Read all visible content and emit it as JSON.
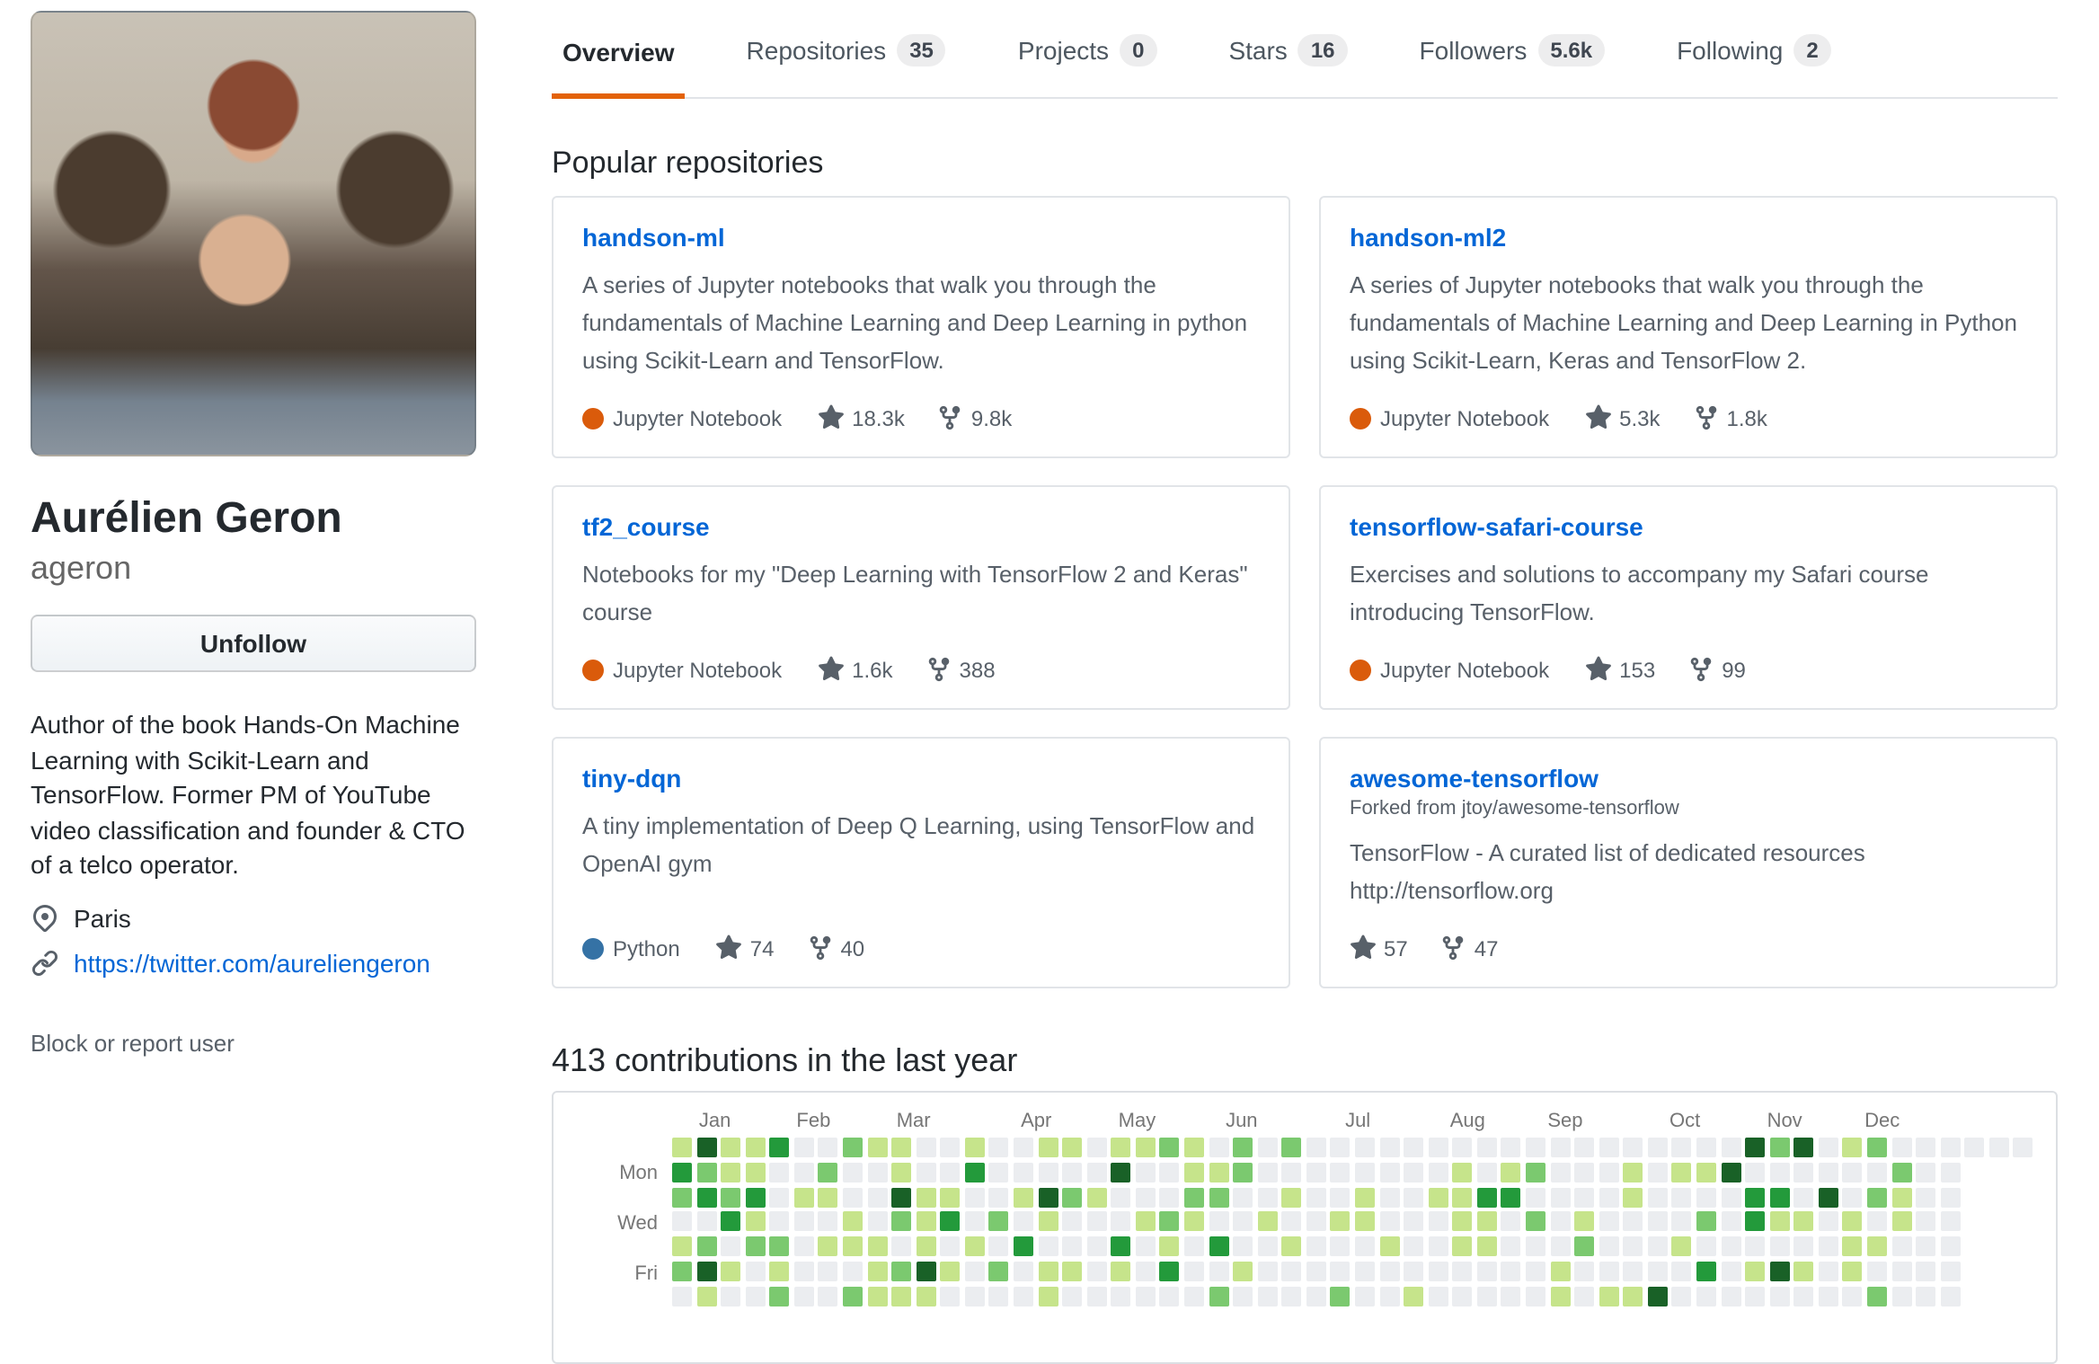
{
  "profile": {
    "name": "Aurélien Geron",
    "username": "ageron",
    "follow_button": "Unfollow",
    "bio": "Author of the book Hands-On Machine Learning with Scikit-Learn and TensorFlow. Former PM of YouTube video classification and founder & CTO of a telco operator.",
    "location": "Paris",
    "website": "https://twitter.com/aureliengeron",
    "block_link": "Block or report user"
  },
  "tabs": [
    {
      "label": "Overview",
      "count": null,
      "active": true
    },
    {
      "label": "Repositories",
      "count": "35",
      "active": false
    },
    {
      "label": "Projects",
      "count": "0",
      "active": false
    },
    {
      "label": "Stars",
      "count": "16",
      "active": false
    },
    {
      "label": "Followers",
      "count": "5.6k",
      "active": false
    },
    {
      "label": "Following",
      "count": "2",
      "active": false
    }
  ],
  "popular_repositories": {
    "heading": "Popular repositories",
    "repos": [
      {
        "name": "handson-ml",
        "fork_note": null,
        "description": "A series of Jupyter notebooks that walk you through the fundamentals of Machine Learning and Deep Learning in python using Scikit-Learn and TensorFlow.",
        "language": "Jupyter Notebook",
        "language_color": "#DA5B0B",
        "stars": "18.3k",
        "forks": "9.8k"
      },
      {
        "name": "handson-ml2",
        "fork_note": null,
        "description": "A series of Jupyter notebooks that walk you through the fundamentals of Machine Learning and Deep Learning in Python using Scikit-Learn, Keras and TensorFlow 2.",
        "language": "Jupyter Notebook",
        "language_color": "#DA5B0B",
        "stars": "5.3k",
        "forks": "1.8k"
      },
      {
        "name": "tf2_course",
        "fork_note": null,
        "description": "Notebooks for my \"Deep Learning with TensorFlow 2 and Keras\" course",
        "language": "Jupyter Notebook",
        "language_color": "#DA5B0B",
        "stars": "1.6k",
        "forks": "388"
      },
      {
        "name": "tensorflow-safari-course",
        "fork_note": null,
        "description": "Exercises and solutions to accompany my Safari course introducing TensorFlow.",
        "language": "Jupyter Notebook",
        "language_color": "#DA5B0B",
        "stars": "153",
        "forks": "99"
      },
      {
        "name": "tiny-dqn",
        "fork_note": null,
        "description": "A tiny implementation of Deep Q Learning, using TensorFlow and OpenAI gym",
        "language": "Python",
        "language_color": "#3572A5",
        "stars": "74",
        "forks": "40"
      },
      {
        "name": "awesome-tensorflow",
        "fork_note": "Forked from jtoy/awesome-tensorflow",
        "description": "TensorFlow - A curated list of dedicated resources http://tensorflow.org",
        "language": null,
        "language_color": null,
        "stars": "57",
        "forks": "47"
      }
    ]
  },
  "contributions": {
    "heading": "413 contributions in the last year",
    "total": 413,
    "months": [
      {
        "label": "Jan",
        "col": 1.1
      },
      {
        "label": "Feb",
        "col": 5.1
      },
      {
        "label": "Mar",
        "col": 9.2
      },
      {
        "label": "Apr",
        "col": 14.3
      },
      {
        "label": "May",
        "col": 18.3
      },
      {
        "label": "Jun",
        "col": 22.7
      },
      {
        "label": "Jul",
        "col": 27.6
      },
      {
        "label": "Aug",
        "col": 31.9
      },
      {
        "label": "Sep",
        "col": 35.9
      },
      {
        "label": "Oct",
        "col": 40.9
      },
      {
        "label": "Nov",
        "col": 44.9
      },
      {
        "label": "Dec",
        "col": 48.9
      }
    ],
    "day_labels": [
      {
        "label": "Mon",
        "row": 1
      },
      {
        "label": "Wed",
        "row": 3
      },
      {
        "label": "Fri",
        "row": 5
      }
    ],
    "palette": [
      "#ebedf0",
      "#c6e48b",
      "#7bc96f",
      "#239a3b",
      "#196127"
    ],
    "levels_by_day": [
      "14113002110010011011210202000000000000000000424012000000",
      "32110020010030000040011200000000101200010114000000200",
      "23230110041100142100022001001001133000010000330402100",
      "00310001021302010001210010011000110201000020311010100",
      "12022011101010300030103001000100110002000100000011000",
      "24101000124102011010300100000000000010000030141010000",
      "01002002111000010000002000020010000010114000000002000"
    ]
  },
  "colors": {
    "active_tab_underline": "#e36209",
    "link_blue": "#0366d6",
    "muted_text": "#586069"
  }
}
